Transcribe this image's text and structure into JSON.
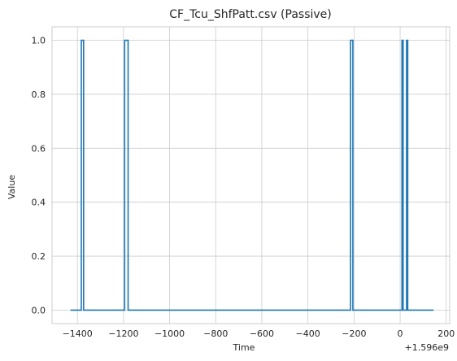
{
  "chart_data": {
    "type": "line",
    "title": "CF_Tcu_ShfPatt.csv (Passive)",
    "xlabel": "Time",
    "ylabel": "Value",
    "x_offset_label": "+1.596e9",
    "xlim": [
      -1510,
      215
    ],
    "ylim": [
      -0.05,
      1.05
    ],
    "xticks": [
      -1400,
      -1200,
      -1000,
      -800,
      -600,
      -400,
      -200,
      0,
      200
    ],
    "xtick_labels": [
      "−1400",
      "−1200",
      "−1000",
      "−800",
      "−600",
      "−400",
      "−200",
      "0",
      "200"
    ],
    "yticks": [
      0.0,
      0.2,
      0.4,
      0.6,
      0.8,
      1.0
    ],
    "ytick_labels": [
      "0.0",
      "0.2",
      "0.4",
      "0.6",
      "0.8",
      "1.0"
    ],
    "grid": true,
    "line_color": "#1f77b4",
    "series": [
      {
        "x": [
          -1430,
          -1383,
          -1383,
          -1373,
          -1373,
          -1195,
          -1195,
          -1180,
          -1180,
          -215,
          -215,
          -205,
          -205,
          8,
          8,
          13,
          13,
          28,
          28,
          33,
          33,
          145
        ],
        "y": [
          0,
          0,
          1,
          1,
          0,
          0,
          1,
          1,
          0,
          0,
          1,
          1,
          0,
          0,
          1,
          1,
          0,
          0,
          1,
          1,
          0,
          0
        ]
      }
    ]
  }
}
